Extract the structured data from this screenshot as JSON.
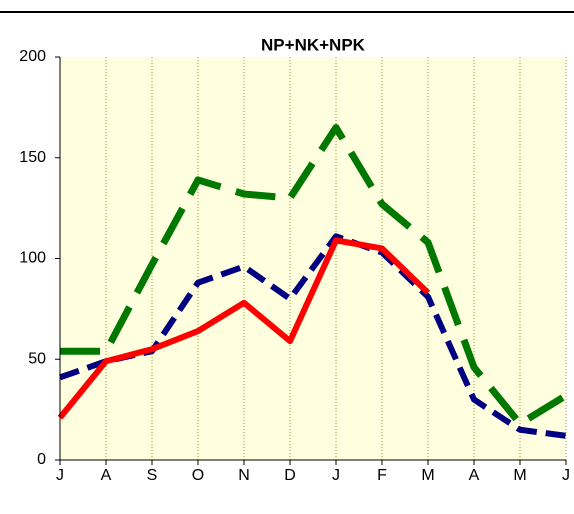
{
  "chart_data": {
    "type": "line",
    "title": "NP+NK+NPK",
    "categories": [
      "J",
      "A",
      "S",
      "O",
      "N",
      "D",
      "J",
      "F",
      "M",
      "A",
      "M",
      "J"
    ],
    "series": [
      {
        "color": "#007800",
        "style": "dashed",
        "values": [
          54,
          54,
          97,
          139,
          132,
          130,
          165,
          127,
          108,
          46,
          18,
          32
        ]
      },
      {
        "color": "#000080",
        "style": "dashed",
        "values": [
          41,
          49,
          54,
          88,
          96,
          80,
          111,
          103,
          81,
          30,
          15,
          12
        ]
      },
      {
        "color": "#ff0000",
        "style": "solid",
        "values": [
          21,
          49,
          55,
          64,
          78,
          59,
          109,
          105,
          83,
          null,
          null,
          null
        ]
      }
    ],
    "ylim": [
      0,
      200
    ],
    "yticks": [
      0,
      50,
      100,
      150,
      200
    ],
    "grid": true
  }
}
